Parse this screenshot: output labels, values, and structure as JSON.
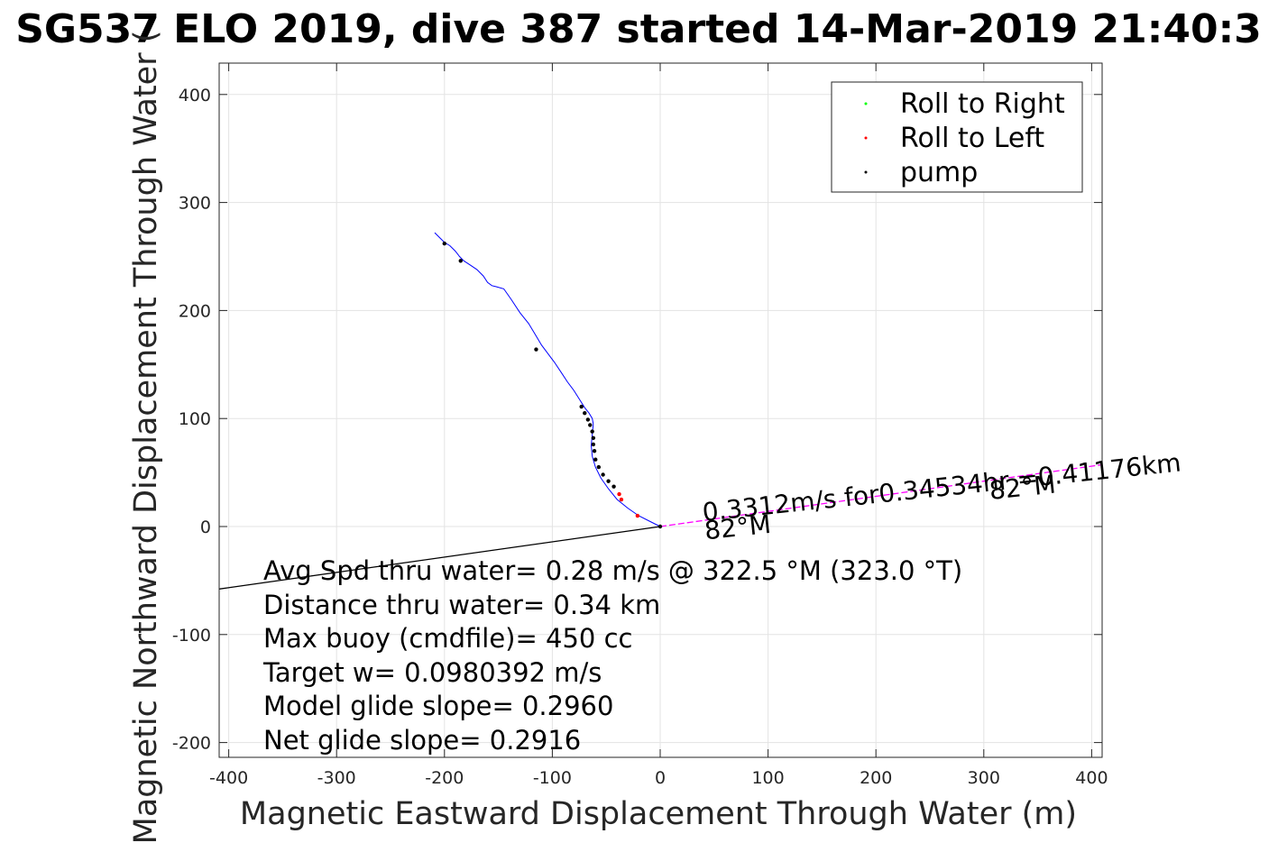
{
  "chart_data": {
    "type": "line",
    "title": "SG537 ELO 2019, dive 387 started 14-Mar-2019 21:40:3",
    "xlabel": "Magnetic Eastward Displacement Through Water (m)",
    "ylabel": "Magnetic Northward Displacement Through Water (",
    "xlim": [
      -410,
      410
    ],
    "ylim": [
      -215,
      430
    ],
    "xticks": [
      -400,
      -300,
      -200,
      -100,
      0,
      100,
      200,
      300,
      400
    ],
    "xtick_labels": [
      "-400",
      "-300",
      "-200",
      "-100",
      "0",
      "100",
      "200",
      "300",
      "400"
    ],
    "yticks": [
      -200,
      -100,
      0,
      100,
      200,
      300,
      400
    ],
    "ytick_labels": [
      "-200",
      "-100",
      "0",
      "100",
      "200",
      "300",
      "400"
    ],
    "grid": true,
    "legend_placement": "top-right",
    "legend": [
      {
        "label": "Roll to Right",
        "color": "#00ff00"
      },
      {
        "label": "Roll to Left",
        "color": "#ff0000"
      },
      {
        "label": "pump",
        "color": "#000000"
      }
    ],
    "series": [
      {
        "color": "#0000ff",
        "kind": "line",
        "x": [
          0,
          -10,
          -20,
          -30,
          -40,
          -48,
          -55,
          -60,
          -63,
          -64,
          -63,
          -62,
          -63,
          -66,
          -70,
          -75,
          -80,
          -86,
          -92,
          -98,
          -104,
          -110,
          -116,
          -122,
          -130,
          -138,
          -145,
          -152,
          -156,
          -160,
          -164,
          -170,
          -176,
          -182,
          -186,
          -190,
          -195,
          -200,
          -204,
          -209
        ],
        "y": [
          0,
          5,
          10,
          17,
          25,
          35,
          45,
          55,
          65,
          75,
          85,
          95,
          100,
          105,
          110,
          118,
          126,
          134,
          143,
          152,
          160,
          168,
          178,
          188,
          198,
          210,
          220,
          222,
          223,
          226,
          232,
          238,
          242,
          246,
          250,
          255,
          260,
          263,
          267,
          272
        ]
      },
      {
        "color": "#ff00ff",
        "kind": "line",
        "x": [
          0,
          100,
          200,
          300,
          408
        ],
        "y": [
          0,
          14,
          28,
          42,
          57
        ]
      },
      {
        "color": "#000000",
        "kind": "line",
        "x": [
          -410,
          0
        ],
        "y": [
          -58,
          0
        ]
      }
    ],
    "markers": [
      {
        "name": "pump",
        "color": "#000000",
        "x": [
          -200,
          -185,
          -115,
          -73,
          -70,
          -67,
          -65,
          -63,
          -62,
          -62,
          -61,
          -60,
          -57,
          -53,
          -48,
          -43,
          0
        ],
        "y": [
          262,
          246,
          164,
          111,
          105,
          99,
          94,
          88,
          82,
          76,
          70,
          62,
          55,
          48,
          42,
          37,
          0
        ]
      },
      {
        "name": "Roll to Left",
        "color": "#ff0000",
        "x": [
          -38,
          -36,
          -21
        ],
        "y": [
          30,
          25,
          10
        ]
      }
    ],
    "annotations": [
      {
        "text": "0.3312m/s for0.34534hr =0.41176km",
        "x": 40,
        "y": 5,
        "rotation": -6
      },
      {
        "text": "82°M",
        "x": 42,
        "y": -12,
        "rotation": -6
      },
      {
        "text": "82°M",
        "x": 306,
        "y": 25,
        "rotation": -6
      }
    ],
    "stats": [
      "Avg Spd thru water=  0.28 m/s @ 322.5 °M (323.0 °T)",
      "Distance thru water=  0.34 km",
      "Max buoy (cmdfile)= 450 cc",
      "Target w= 0.0980392 m/s",
      "Model glide slope= 0.2960",
      "Net glide slope= 0.2916"
    ]
  }
}
